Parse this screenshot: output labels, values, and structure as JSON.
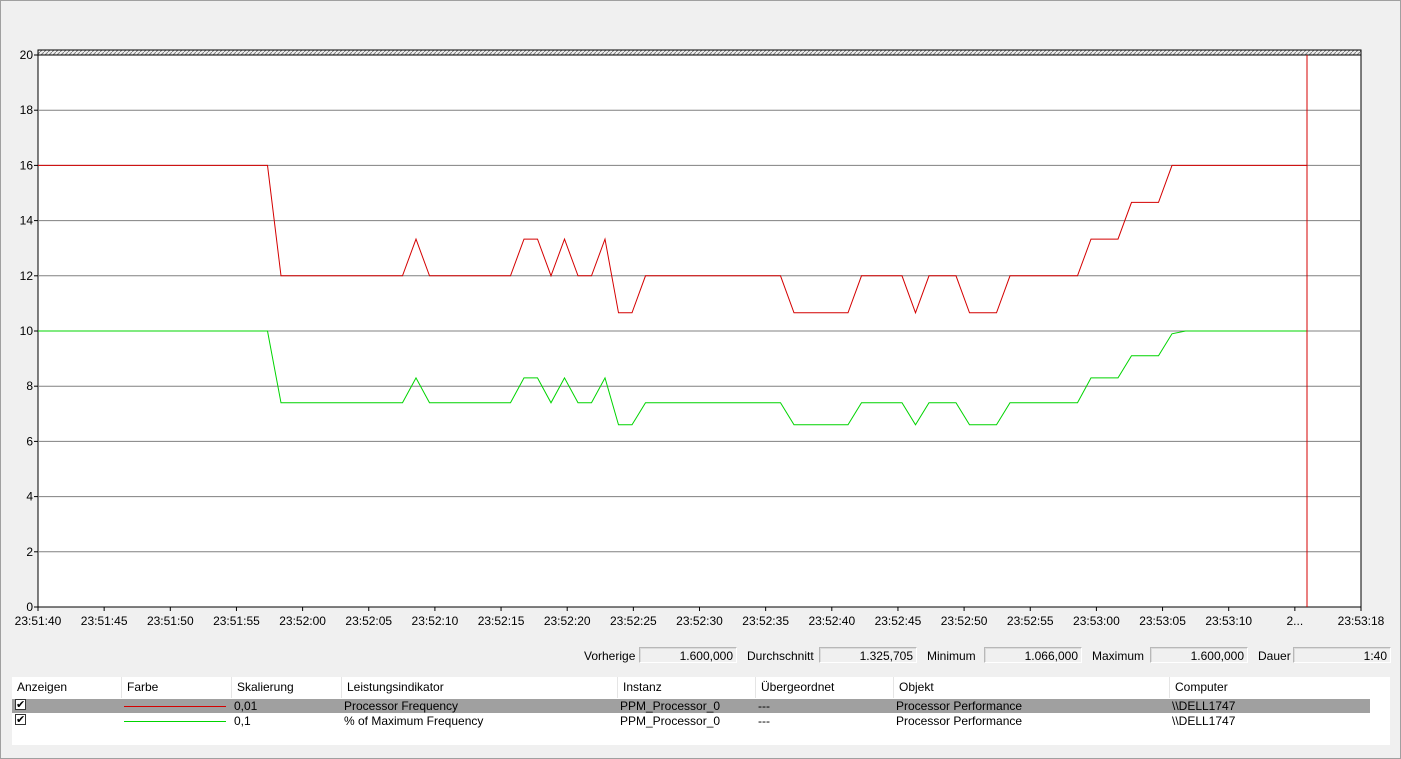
{
  "chart_data": {
    "type": "line",
    "y_ticks": [
      "0",
      "2",
      "4",
      "6",
      "8",
      "10",
      "12",
      "14",
      "16",
      "18",
      "20"
    ],
    "ylim": [
      0,
      20
    ],
    "x_ticks": [
      "23:51:40",
      "23:51:45",
      "23:51:50",
      "23:51:55",
      "23:52:00",
      "23:52:05",
      "23:52:10",
      "23:52:15",
      "23:52:20",
      "23:52:25",
      "23:52:30",
      "23:52:35",
      "23:52:40",
      "23:52:45",
      "23:52:50",
      "23:52:55",
      "23:53:00",
      "23:53:05",
      "23:53:10",
      "2...",
      "23:53:18"
    ],
    "x_seconds_range": [
      0,
      98
    ],
    "cursor_seconds": 94,
    "grid": true,
    "series": [
      {
        "name": "Processor Frequency",
        "color": "#d40000",
        "points": [
          [
            0,
            16
          ],
          [
            17,
            16
          ],
          [
            18,
            12
          ],
          [
            27,
            12
          ],
          [
            28,
            13.33
          ],
          [
            29,
            12
          ],
          [
            35,
            12
          ],
          [
            36,
            13.33
          ],
          [
            37,
            13.33
          ],
          [
            38,
            12
          ],
          [
            39,
            13.33
          ],
          [
            40,
            12
          ],
          [
            41,
            12
          ],
          [
            42,
            13.33
          ],
          [
            43,
            10.66
          ],
          [
            44,
            10.66
          ],
          [
            45,
            12
          ],
          [
            55,
            12
          ],
          [
            56,
            10.66
          ],
          [
            60,
            10.66
          ],
          [
            61,
            12
          ],
          [
            64,
            12
          ],
          [
            65,
            10.66
          ],
          [
            66,
            12
          ],
          [
            68,
            12
          ],
          [
            69,
            10.66
          ],
          [
            71,
            10.66
          ],
          [
            72,
            12
          ],
          [
            77,
            12
          ],
          [
            78,
            13.33
          ],
          [
            80,
            13.33
          ],
          [
            81,
            14.66
          ],
          [
            83,
            14.66
          ],
          [
            84,
            16
          ],
          [
            94,
            16
          ]
        ]
      },
      {
        "name": "% of Maximum Frequency",
        "color": "#00d400",
        "points": [
          [
            0,
            10
          ],
          [
            17,
            10
          ],
          [
            18,
            7.4
          ],
          [
            27,
            7.4
          ],
          [
            28,
            8.3
          ],
          [
            29,
            7.4
          ],
          [
            35,
            7.4
          ],
          [
            36,
            8.3
          ],
          [
            37,
            8.3
          ],
          [
            38,
            7.4
          ],
          [
            39,
            8.3
          ],
          [
            40,
            7.4
          ],
          [
            41,
            7.4
          ],
          [
            42,
            8.3
          ],
          [
            43,
            6.6
          ],
          [
            44,
            6.6
          ],
          [
            45,
            7.4
          ],
          [
            55,
            7.4
          ],
          [
            56,
            6.6
          ],
          [
            60,
            6.6
          ],
          [
            61,
            7.4
          ],
          [
            64,
            7.4
          ],
          [
            65,
            6.6
          ],
          [
            66,
            7.4
          ],
          [
            68,
            7.4
          ],
          [
            69,
            6.6
          ],
          [
            71,
            6.6
          ],
          [
            72,
            7.4
          ],
          [
            77,
            7.4
          ],
          [
            78,
            8.3
          ],
          [
            80,
            8.3
          ],
          [
            81,
            9.1
          ],
          [
            83,
            9.1
          ],
          [
            84,
            9.9
          ],
          [
            85,
            10
          ],
          [
            94,
            10
          ]
        ]
      }
    ]
  },
  "stats": {
    "last_label": "Vorherige",
    "last_value": "1.600,000",
    "avg_label": "Durchschnitt",
    "avg_value": "1.325,705",
    "min_label": "Minimum",
    "min_value": "1.066,000",
    "max_label": "Maximum",
    "max_value": "1.600,000",
    "dur_label": "Dauer",
    "dur_value": "1:40"
  },
  "table": {
    "headers": {
      "show": "Anzeigen",
      "color": "Farbe",
      "scale": "Skalierung",
      "counter": "Leistungsindikator",
      "instance": "Instanz",
      "parent": "Übergeordnet",
      "object": "Objekt",
      "computer": "Computer"
    },
    "rows": [
      {
        "checked": "✔",
        "color": "#d40000",
        "scale": "0,01",
        "counter": "Processor Frequency",
        "instance": "PPM_Processor_0",
        "parent": "---",
        "object": "Processor Performance",
        "computer": "\\\\DELL1747"
      },
      {
        "checked": "✔",
        "color": "#00d400",
        "scale": "0,1",
        "counter": "% of Maximum Frequency",
        "instance": "PPM_Processor_0",
        "parent": "---",
        "object": "Processor Performance",
        "computer": "\\\\DELL1747"
      }
    ]
  }
}
